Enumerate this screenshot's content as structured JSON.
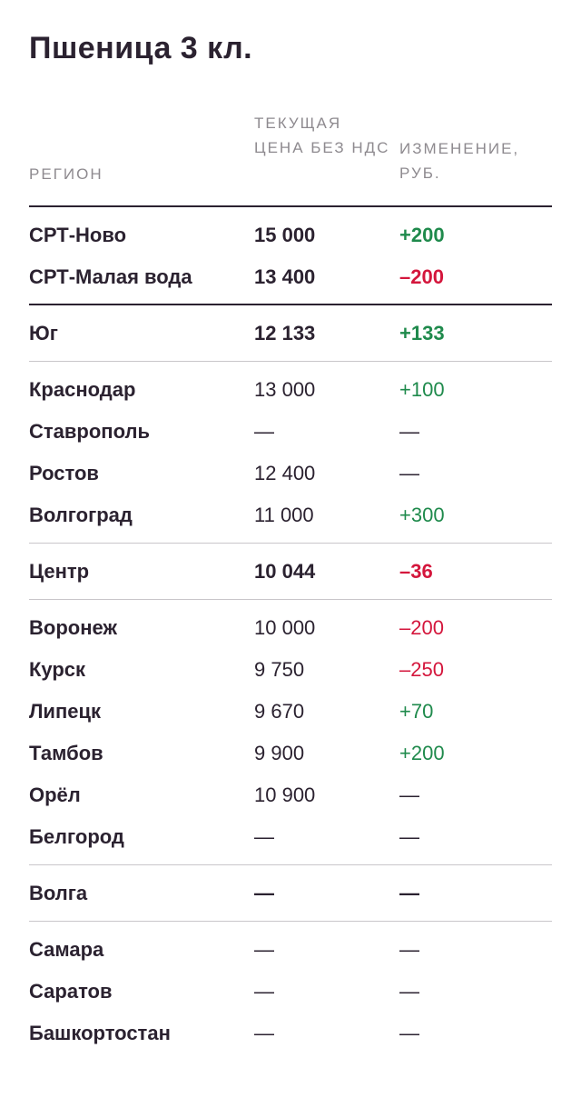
{
  "title": "Пшеница 3 кл.",
  "headers": {
    "region": "РЕГИОН",
    "price": "ТЕКУЩАЯ ЦЕНА БЕЗ НДС",
    "change": "ИЗМЕНЕНИЕ, РУБ."
  },
  "colors": {
    "positive": "#1f8a4c",
    "negative": "#d4163c",
    "text": "#2b2230",
    "header": "#8e8a8f"
  },
  "rows": [
    {
      "region": "СРТ-Ново",
      "price": "15 000",
      "change": "+200",
      "trend": "pos",
      "bold": true
    },
    {
      "region": "СРТ-Малая вода",
      "price": "13 400",
      "change": "–200",
      "trend": "neg",
      "bold": true
    },
    {
      "region": "Юг",
      "price": "12 133",
      "change": "+133",
      "trend": "pos",
      "bold": true
    },
    {
      "region": "Краснодар",
      "price": "13 000",
      "change": "+100",
      "trend": "pos",
      "bold": false
    },
    {
      "region": "Ставрополь",
      "price": "—",
      "change": "—",
      "trend": "none",
      "bold": false
    },
    {
      "region": "Ростов",
      "price": "12 400",
      "change": "—",
      "trend": "none",
      "bold": false
    },
    {
      "region": "Волгоград",
      "price": "11 000",
      "change": "+300",
      "trend": "pos",
      "bold": false
    },
    {
      "region": "Центр",
      "price": "10 044",
      "change": "–36",
      "trend": "neg",
      "bold": true
    },
    {
      "region": "Воронеж",
      "price": "10 000",
      "change": "–200",
      "trend": "neg",
      "bold": false
    },
    {
      "region": "Курск",
      "price": "9 750",
      "change": "–250",
      "trend": "neg",
      "bold": false
    },
    {
      "region": "Липецк",
      "price": "9 670",
      "change": "+70",
      "trend": "pos",
      "bold": false
    },
    {
      "region": "Тамбов",
      "price": "9 900",
      "change": "+200",
      "trend": "pos",
      "bold": false
    },
    {
      "region": "Орёл",
      "price": "10 900",
      "change": "—",
      "trend": "none",
      "bold": false
    },
    {
      "region": "Белгород",
      "price": "—",
      "change": "—",
      "trend": "none",
      "bold": false
    },
    {
      "region": "Волга",
      "price": "—",
      "change": "—",
      "trend": "none",
      "bold": true
    },
    {
      "region": "Самара",
      "price": "—",
      "change": "—",
      "trend": "none",
      "bold": false
    },
    {
      "region": "Саратов",
      "price": "—",
      "change": "—",
      "trend": "none",
      "bold": false
    },
    {
      "region": "Башкортостан",
      "price": "—",
      "change": "—",
      "trend": "none",
      "bold": false
    }
  ]
}
